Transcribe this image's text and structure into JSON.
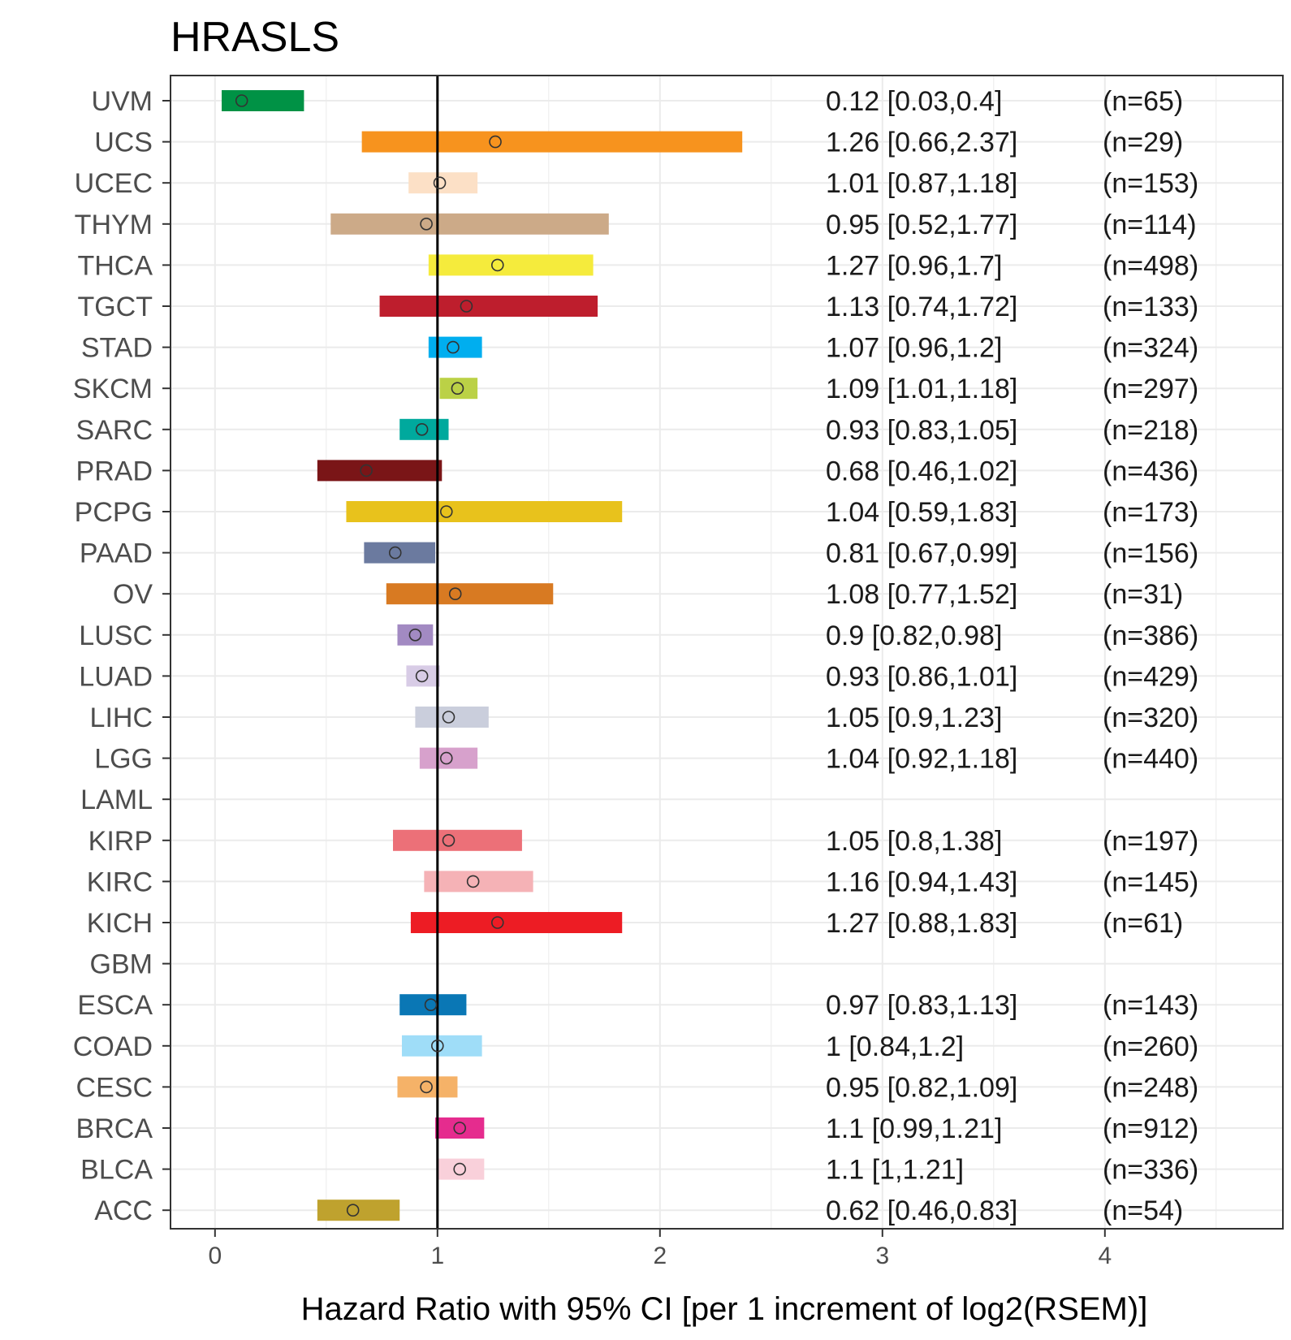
{
  "chart_data": {
    "type": "forest",
    "title": "HRASLS",
    "xlabel": "Hazard Ratio with 95% CI [per 1 increment of log2(RSEM)]",
    "ylabel": "",
    "xlim": [
      -0.2,
      4.8
    ],
    "x_ticks": [
      0,
      1,
      2,
      3,
      4
    ],
    "x_tick_labels": [
      "0",
      "1",
      "2",
      "3",
      "4"
    ],
    "reference_line": 1,
    "grid": true,
    "rows": [
      {
        "label": "UVM",
        "hr": 0.12,
        "lo": 0.03,
        "hi": 0.4,
        "text": "0.12 [0.03,0.4]",
        "n": "(n=65)",
        "color": "#009245"
      },
      {
        "label": "UCS",
        "hr": 1.26,
        "lo": 0.66,
        "hi": 2.37,
        "text": "1.26 [0.66,2.37]",
        "n": "(n=29)",
        "color": "#F7931E"
      },
      {
        "label": "UCEC",
        "hr": 1.01,
        "lo": 0.87,
        "hi": 1.18,
        "text": "1.01 [0.87,1.18]",
        "n": "(n=153)",
        "color": "#FCE0C6"
      },
      {
        "label": "THYM",
        "hr": 0.95,
        "lo": 0.52,
        "hi": 1.77,
        "text": "0.95 [0.52,1.77]",
        "n": "(n=114)",
        "color": "#CCAA88"
      },
      {
        "label": "THCA",
        "hr": 1.27,
        "lo": 0.96,
        "hi": 1.7,
        "text": "1.27 [0.96,1.7]",
        "n": "(n=498)",
        "color": "#F5EB3C"
      },
      {
        "label": "TGCT",
        "hr": 1.13,
        "lo": 0.74,
        "hi": 1.72,
        "text": "1.13 [0.74,1.72]",
        "n": "(n=133)",
        "color": "#BE1E2D"
      },
      {
        "label": "STAD",
        "hr": 1.07,
        "lo": 0.96,
        "hi": 1.2,
        "text": "1.07 [0.96,1.2]",
        "n": "(n=324)",
        "color": "#00AEEF"
      },
      {
        "label": "SKCM",
        "hr": 1.09,
        "lo": 1.01,
        "hi": 1.18,
        "text": "1.09 [1.01,1.18]",
        "n": "(n=297)",
        "color": "#BBD146"
      },
      {
        "label": "SARC",
        "hr": 0.93,
        "lo": 0.83,
        "hi": 1.05,
        "text": "0.93 [0.83,1.05]",
        "n": "(n=218)",
        "color": "#00A99D"
      },
      {
        "label": "PRAD",
        "hr": 0.68,
        "lo": 0.46,
        "hi": 1.02,
        "text": "0.68 [0.46,1.02]",
        "n": "(n=436)",
        "color": "#7A1517"
      },
      {
        "label": "PCPG",
        "hr": 1.04,
        "lo": 0.59,
        "hi": 1.83,
        "text": "1.04 [0.59,1.83]",
        "n": "(n=173)",
        "color": "#E8C21C"
      },
      {
        "label": "PAAD",
        "hr": 0.81,
        "lo": 0.67,
        "hi": 0.99,
        "text": "0.81 [0.67,0.99]",
        "n": "(n=156)",
        "color": "#6B7A9F"
      },
      {
        "label": "OV",
        "hr": 1.08,
        "lo": 0.77,
        "hi": 1.52,
        "text": "1.08 [0.77,1.52]",
        "n": "(n=31)",
        "color": "#D87A22"
      },
      {
        "label": "LUSC",
        "hr": 0.9,
        "lo": 0.82,
        "hi": 0.98,
        "text": "0.9 [0.82,0.98]",
        "n": "(n=386)",
        "color": "#A28AC2"
      },
      {
        "label": "LUAD",
        "hr": 0.93,
        "lo": 0.86,
        "hi": 1.01,
        "text": "0.93 [0.86,1.01]",
        "n": "(n=429)",
        "color": "#D8CCE6"
      },
      {
        "label": "LIHC",
        "hr": 1.05,
        "lo": 0.9,
        "hi": 1.23,
        "text": "1.05 [0.9,1.23]",
        "n": "(n=320)",
        "color": "#CACEDC"
      },
      {
        "label": "LGG",
        "hr": 1.04,
        "lo": 0.92,
        "hi": 1.18,
        "text": "1.04 [0.92,1.18]",
        "n": "(n=440)",
        "color": "#D7A1CC"
      },
      {
        "label": "LAML",
        "hr": null,
        "lo": null,
        "hi": null,
        "text": "",
        "n": "",
        "color": "#ffffff"
      },
      {
        "label": "KIRP",
        "hr": 1.05,
        "lo": 0.8,
        "hi": 1.38,
        "text": "1.05 [0.8,1.38]",
        "n": "(n=197)",
        "color": "#EC7078"
      },
      {
        "label": "KIRC",
        "hr": 1.16,
        "lo": 0.94,
        "hi": 1.43,
        "text": "1.16 [0.94,1.43]",
        "n": "(n=145)",
        "color": "#F5B2B6"
      },
      {
        "label": "KICH",
        "hr": 1.27,
        "lo": 0.88,
        "hi": 1.83,
        "text": "1.27 [0.88,1.83]",
        "n": "(n=61)",
        "color": "#ED1C24"
      },
      {
        "label": "GBM",
        "hr": null,
        "lo": null,
        "hi": null,
        "text": "",
        "n": "",
        "color": "#ffffff"
      },
      {
        "label": "ESCA",
        "hr": 0.97,
        "lo": 0.83,
        "hi": 1.13,
        "text": "0.97 [0.83,1.13]",
        "n": "(n=143)",
        "color": "#0A77B5"
      },
      {
        "label": "COAD",
        "hr": 1,
        "lo": 0.84,
        "hi": 1.2,
        "text": "1 [0.84,1.2]",
        "n": "(n=260)",
        "color": "#9FDDF8"
      },
      {
        "label": "CESC",
        "hr": 0.95,
        "lo": 0.82,
        "hi": 1.09,
        "text": "0.95 [0.82,1.09]",
        "n": "(n=248)",
        "color": "#F5B268"
      },
      {
        "label": "BRCA",
        "hr": 1.1,
        "lo": 0.99,
        "hi": 1.21,
        "text": "1.1 [0.99,1.21]",
        "n": "(n=912)",
        "color": "#E52C8E"
      },
      {
        "label": "BLCA",
        "hr": 1.1,
        "lo": 1,
        "hi": 1.21,
        "text": "1.1 [1,1.21]",
        "n": "(n=336)",
        "color": "#F9D0DA"
      },
      {
        "label": "ACC",
        "hr": 0.62,
        "lo": 0.46,
        "hi": 0.83,
        "text": "0.62 [0.46,0.83]",
        "n": "(n=54)",
        "color": "#BFA22E"
      }
    ]
  }
}
